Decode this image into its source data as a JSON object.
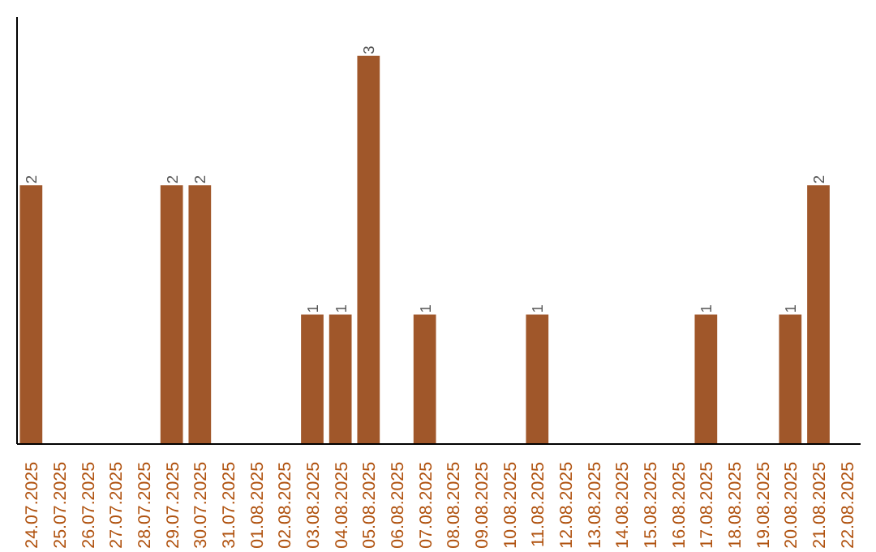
{
  "chart_data": {
    "type": "bar",
    "categories": [
      "24.07.2025",
      "25.07.2025",
      "26.07.2025",
      "27.07.2025",
      "28.07.2025",
      "29.07.2025",
      "30.07.2025",
      "31.07.2025",
      "01.08.2025",
      "02.08.2025",
      "03.08.2025",
      "04.08.2025",
      "05.08.2025",
      "06.08.2025",
      "07.08.2025",
      "08.08.2025",
      "09.08.2025",
      "10.08.2025",
      "11.08.2025",
      "12.08.2025",
      "13.08.2025",
      "14.08.2025",
      "15.08.2025",
      "16.08.2025",
      "17.08.2025",
      "18.08.2025",
      "19.08.2025",
      "20.08.2025",
      "21.08.2025",
      "22.08.2025"
    ],
    "values": [
      2,
      0,
      0,
      0,
      0,
      2,
      2,
      0,
      0,
      0,
      1,
      1,
      3,
      0,
      1,
      0,
      0,
      0,
      1,
      0,
      0,
      0,
      0,
      0,
      1,
      0,
      0,
      1,
      2,
      0
    ],
    "value_labels": [
      "2",
      null,
      null,
      null,
      null,
      "2",
      "2",
      null,
      null,
      null,
      "1",
      "1",
      "3",
      null,
      "1",
      null,
      null,
      null,
      "1",
      null,
      null,
      null,
      null,
      null,
      "1",
      null,
      null,
      "1",
      "2",
      null
    ],
    "color": "#a0572a",
    "grid": false
  }
}
